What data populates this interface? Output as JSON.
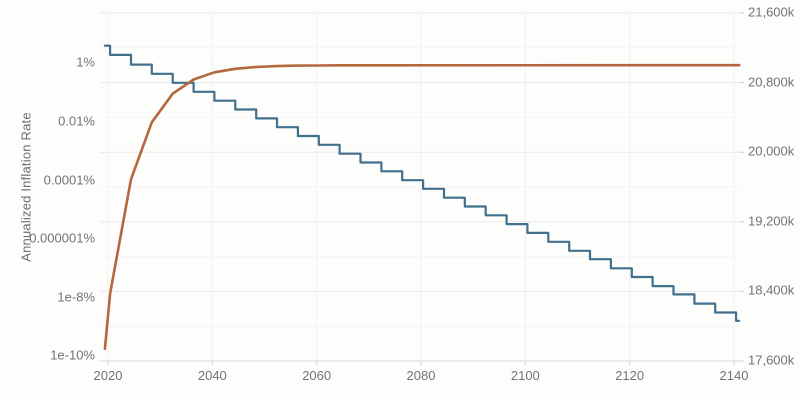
{
  "colors": {
    "background": "#fdfdfb",
    "grid_major": "#e9e9e9",
    "grid_minor": "#f4f4f3",
    "grid_vertical": "#f3f1ee",
    "axis_baseline": "#d8d8d8",
    "tick_mark": "#cfcfcf",
    "tick_text": "#737373",
    "axis_title_text": "#6e6e6e",
    "inflation_line": "#41708c",
    "supply_line": "#b5673d"
  },
  "chart_data": {
    "type": "line",
    "title": "",
    "x_axis": {
      "ticks": [
        "2020",
        "2040",
        "2060",
        "2080",
        "2100",
        "2120",
        "2140"
      ],
      "tick_values": [
        2020,
        2040,
        2060,
        2080,
        2100,
        2120,
        2140
      ],
      "range": [
        2018.5,
        2141.2
      ],
      "grid": true
    },
    "left_axis": {
      "label": "Annualized Inflation Rate",
      "scale": "log",
      "ticks": [
        "1%",
        "0.01%",
        "0.0001%",
        "0.000001%",
        "1e-8%",
        "1e-10%"
      ],
      "tick_values": [
        1,
        0.01,
        0.0001,
        1e-06,
        1e-08,
        1e-10
      ],
      "grid": false
    },
    "right_axis": {
      "label": "",
      "scale": "linear",
      "ticks": [
        "21,600k",
        "20,800k",
        "20,000k",
        "19,200k",
        "18,400k",
        "17,600k"
      ],
      "tick_values": [
        21600,
        20800,
        20000,
        19200,
        18400,
        17600
      ],
      "minor_step": 400,
      "range": [
        17600,
        21600
      ],
      "grid": true
    },
    "series": [
      {
        "name": "annualized-inflation-rate",
        "axis": "left",
        "style": "step-after",
        "color": "#41708c",
        "points": [
          [
            2019.4,
            3.7
          ],
          [
            2020.4,
            1.79
          ],
          [
            2024.4,
            0.834
          ],
          [
            2028.4,
            0.404
          ],
          [
            2032.4,
            0.199
          ],
          [
            2036.4,
            0.0985
          ],
          [
            2040.4,
            0.0491
          ],
          [
            2044.4,
            0.0245
          ],
          [
            2048.4,
            0.0122
          ],
          [
            2052.4,
            0.00611
          ],
          [
            2056.4,
            0.00306
          ],
          [
            2060.4,
            0.00153
          ],
          [
            2064.4,
            0.00076
          ],
          [
            2068.4,
            0.00038
          ],
          [
            2072.4,
            0.00019
          ],
          [
            2076.4,
            9.5e-05
          ],
          [
            2080.4,
            4.8e-05
          ],
          [
            2084.4,
            2.4e-05
          ],
          [
            2088.4,
            1.2e-05
          ],
          [
            2092.4,
            6e-06
          ],
          [
            2096.4,
            3e-06
          ],
          [
            2100.4,
            1.5e-06
          ],
          [
            2104.4,
            7.5e-07
          ],
          [
            2108.4,
            3.7e-07
          ],
          [
            2112.4,
            1.9e-07
          ],
          [
            2116.4,
            9.3e-08
          ],
          [
            2120.4,
            4.7e-08
          ],
          [
            2124.4,
            2.3e-08
          ],
          [
            2128.4,
            1.2e-08
          ],
          [
            2132.4,
            5.8e-09
          ],
          [
            2136.4,
            2.9e-09
          ],
          [
            2140.4,
            1.5e-09
          ]
        ]
      },
      {
        "name": "total-supply",
        "axis": "right",
        "style": "linear",
        "color": "#b5673d",
        "points": [
          [
            2019.4,
            17740
          ],
          [
            2020.4,
            18375
          ],
          [
            2024.4,
            19688
          ],
          [
            2028.4,
            20344
          ],
          [
            2032.4,
            20672
          ],
          [
            2036.4,
            20836
          ],
          [
            2040.4,
            20918
          ],
          [
            2044.4,
            20959
          ],
          [
            2048.4,
            20979
          ],
          [
            2052.4,
            20990
          ],
          [
            2056.4,
            20995
          ],
          [
            2060.4,
            20997
          ],
          [
            2064.4,
            20999
          ],
          [
            2141.0,
            21000
          ]
        ]
      }
    ],
    "legend": null
  }
}
